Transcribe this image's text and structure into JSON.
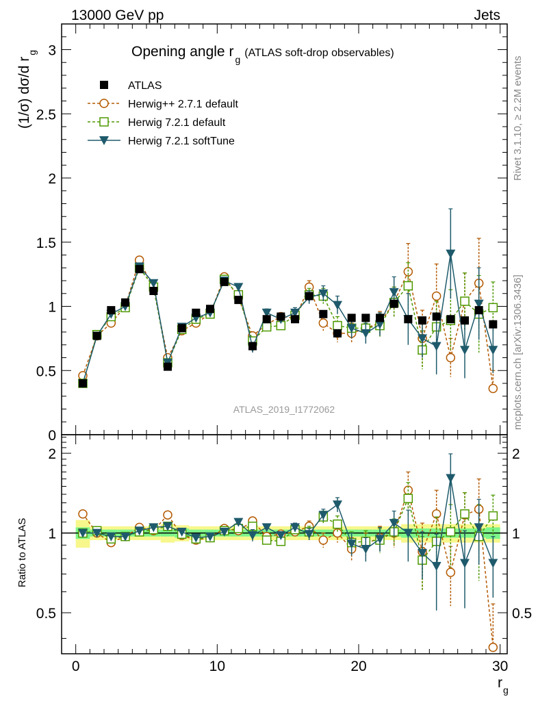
{
  "header": {
    "left": "13000 GeV pp",
    "right": "Jets"
  },
  "title_main": "Opening angle r",
  "title_sub": "g",
  "title_note": "(ATLAS soft-drop observables)",
  "ylabel_top_main": "(1/σ) dσ/d r",
  "ylabel_top_sub": "g",
  "ylabel_bottom": "Ratio to ATLAS",
  "xlabel_main": "r",
  "xlabel_sub": "g",
  "watermark": "ATLAS_2019_I1772062",
  "side_top": "Rivet 3.1.10, ≥ 2.2M events",
  "side_bottom": "mcplots.cern.ch [arXiv:1306.3436]",
  "colors": {
    "atlas": "#000000",
    "herwigpp": "#b35900",
    "herwig721": "#4d9900",
    "softtune": "#1e5a6b",
    "band_inner": "#7df58a",
    "band_outer": "#f7f78c"
  },
  "chart_data": [
    {
      "type": "scatter",
      "panel": "main",
      "x": [
        0.5,
        1.5,
        2.5,
        3.5,
        4.5,
        5.5,
        6.5,
        7.5,
        8.5,
        9.5,
        10.5,
        11.5,
        12.5,
        13.5,
        14.5,
        15.5,
        16.5,
        17.5,
        18.5,
        19.5,
        20.5,
        21.5,
        22.5,
        23.5,
        24.5,
        25.5,
        26.5,
        27.5,
        28.5,
        29.5
      ],
      "xlim": [
        -1,
        30.5
      ],
      "ylim": [
        0,
        3.2
      ],
      "yticks": [
        0,
        0.5,
        1,
        1.5,
        2,
        2.5,
        3
      ],
      "xticks": [
        0,
        10,
        20,
        30
      ],
      "legend_position": "top-left",
      "series": [
        {
          "name": "ATLAS",
          "key": "atlas",
          "marker": "filled-square",
          "values": [
            0.4,
            0.77,
            0.97,
            1.03,
            1.29,
            1.12,
            0.53,
            0.83,
            0.95,
            0.98,
            1.19,
            1.05,
            0.69,
            0.9,
            0.92,
            0.9,
            1.08,
            0.94,
            0.79,
            0.91,
            0.91,
            0.91,
            1.02,
            0.9,
            0.89,
            0.92,
            0.9,
            0.89,
            0.97,
            0.86
          ]
        },
        {
          "name": "Herwig++ 2.7.1 default",
          "key": "herwigpp",
          "marker": "open-circle",
          "values": [
            0.46,
            0.77,
            0.87,
            1.0,
            1.36,
            1.14,
            0.6,
            0.81,
            0.87,
            0.94,
            1.23,
            1.07,
            0.77,
            0.86,
            0.92,
            0.91,
            1.15,
            0.87,
            0.79,
            0.79,
            0.83,
            0.87,
            1.03,
            1.27,
            0.75,
            1.08,
            0.6,
            1.04,
            1.18,
            0.36
          ],
          "errors": [
            0.01,
            0.01,
            0.01,
            0.01,
            0.01,
            0.01,
            0.01,
            0.01,
            0.01,
            0.01,
            0.01,
            0.01,
            0.02,
            0.03,
            0.03,
            0.04,
            0.05,
            0.06,
            0.07,
            0.08,
            0.08,
            0.09,
            0.12,
            0.22,
            0.22,
            0.25,
            0.15,
            0.22,
            0.35,
            0.14
          ]
        },
        {
          "name": "Herwig 7.2.1 default",
          "key": "herwig721",
          "marker": "open-square",
          "values": [
            0.4,
            0.78,
            0.92,
            0.99,
            1.3,
            1.15,
            0.56,
            0.82,
            0.9,
            0.94,
            1.21,
            1.09,
            0.73,
            0.84,
            0.85,
            0.93,
            1.09,
            1.08,
            0.85,
            0.83,
            0.83,
            0.85,
            1.03,
            1.16,
            0.66,
            0.84,
            0.89,
            1.04,
            0.94,
            0.99
          ],
          "errors": [
            0.01,
            0.01,
            0.01,
            0.01,
            0.01,
            0.01,
            0.01,
            0.01,
            0.01,
            0.01,
            0.01,
            0.01,
            0.02,
            0.03,
            0.03,
            0.04,
            0.05,
            0.06,
            0.07,
            0.08,
            0.08,
            0.09,
            0.12,
            0.18,
            0.15,
            0.2,
            0.24,
            0.22,
            0.3,
            0.2
          ]
        },
        {
          "name": "Herwig 7.2.1 softTune",
          "key": "softtune",
          "marker": "filled-triangle-down",
          "values": [
            0.4,
            0.77,
            0.94,
            1.0,
            1.31,
            1.18,
            0.56,
            0.84,
            0.91,
            0.95,
            1.2,
            1.15,
            0.68,
            0.95,
            0.9,
            0.95,
            1.07,
            1.1,
            1.01,
            0.83,
            0.79,
            0.86,
            1.11,
            0.9,
            0.75,
            0.69,
            1.41,
            0.66,
            1.02,
            0.66
          ],
          "errors": [
            0.01,
            0.01,
            0.01,
            0.01,
            0.01,
            0.01,
            0.01,
            0.01,
            0.01,
            0.01,
            0.01,
            0.01,
            0.04,
            0.03,
            0.03,
            0.04,
            0.05,
            0.06,
            0.07,
            0.08,
            0.08,
            0.09,
            0.12,
            0.2,
            0.15,
            0.22,
            0.35,
            0.22,
            0.28,
            0.18
          ]
        }
      ]
    },
    {
      "type": "scatter",
      "panel": "ratio",
      "ylim": [
        0.35,
        2.35
      ],
      "yticks": [
        0.5,
        1,
        2
      ],
      "ratio_band_inner": [
        0.05,
        0.03,
        0.03,
        0.03,
        0.03,
        0.03,
        0.03,
        0.04,
        0.03,
        0.03,
        0.03,
        0.03,
        0.03,
        0.03,
        0.03,
        0.03,
        0.03,
        0.03,
        0.03,
        0.03,
        0.03,
        0.03,
        0.03,
        0.04,
        0.04,
        0.04,
        0.04,
        0.04,
        0.04,
        0.05
      ],
      "ratio_band_outer": [
        0.12,
        0.06,
        0.06,
        0.06,
        0.06,
        0.06,
        0.08,
        0.07,
        0.06,
        0.06,
        0.06,
        0.06,
        0.06,
        0.06,
        0.06,
        0.06,
        0.06,
        0.06,
        0.06,
        0.06,
        0.06,
        0.06,
        0.06,
        0.08,
        0.08,
        0.08,
        0.08,
        0.08,
        0.08,
        0.08
      ],
      "series": [
        {
          "key": "herwigpp",
          "marker": "open-circle",
          "values": [
            1.18,
            1.0,
            0.92,
            0.97,
            1.05,
            1.02,
            1.17,
            0.98,
            0.94,
            0.96,
            1.04,
            1.02,
            1.11,
            0.97,
            0.99,
            1.01,
            1.06,
            0.94,
            1.0,
            0.87,
            0.91,
            0.96,
            1.0,
            1.45,
            0.85,
            1.18,
            0.71,
            1.17,
            1.23,
            0.37
          ],
          "errors": [
            0.01,
            0.01,
            0.01,
            0.01,
            0.01,
            0.01,
            0.01,
            0.01,
            0.01,
            0.01,
            0.01,
            0.01,
            0.03,
            0.03,
            0.03,
            0.04,
            0.05,
            0.06,
            0.08,
            0.09,
            0.09,
            0.1,
            0.12,
            0.25,
            0.24,
            0.27,
            0.18,
            0.25,
            0.37,
            0.17
          ]
        },
        {
          "key": "herwig721",
          "marker": "open-square",
          "values": [
            1.0,
            1.02,
            0.95,
            0.97,
            1.01,
            1.03,
            1.06,
            0.99,
            0.95,
            0.96,
            1.02,
            1.04,
            1.06,
            0.94,
            0.93,
            1.03,
            1.01,
            1.15,
            1.08,
            0.92,
            0.93,
            0.94,
            1.01,
            1.35,
            0.79,
            0.93,
            1.01,
            1.18,
            0.97,
            1.16
          ],
          "errors": [
            0.01,
            0.01,
            0.01,
            0.01,
            0.01,
            0.01,
            0.01,
            0.01,
            0.01,
            0.01,
            0.01,
            0.01,
            0.03,
            0.03,
            0.03,
            0.04,
            0.05,
            0.06,
            0.08,
            0.09,
            0.09,
            0.1,
            0.12,
            0.2,
            0.18,
            0.22,
            0.27,
            0.24,
            0.31,
            0.23
          ]
        },
        {
          "key": "softtune",
          "marker": "filled-triangle-down",
          "values": [
            1.0,
            1.0,
            0.97,
            0.97,
            1.02,
            1.05,
            1.06,
            1.01,
            0.96,
            0.97,
            1.01,
            1.1,
            0.98,
            1.05,
            0.98,
            1.05,
            0.99,
            1.17,
            1.28,
            0.91,
            0.87,
            0.95,
            1.09,
            1.0,
            0.84,
            0.75,
            1.61,
            0.77,
            1.05,
            0.77
          ],
          "errors": [
            0.01,
            0.01,
            0.01,
            0.01,
            0.01,
            0.01,
            0.01,
            0.01,
            0.01,
            0.01,
            0.01,
            0.01,
            0.05,
            0.03,
            0.03,
            0.04,
            0.05,
            0.06,
            0.08,
            0.09,
            0.09,
            0.1,
            0.12,
            0.22,
            0.17,
            0.24,
            0.38,
            0.25,
            0.29,
            0.2
          ]
        }
      ]
    }
  ]
}
